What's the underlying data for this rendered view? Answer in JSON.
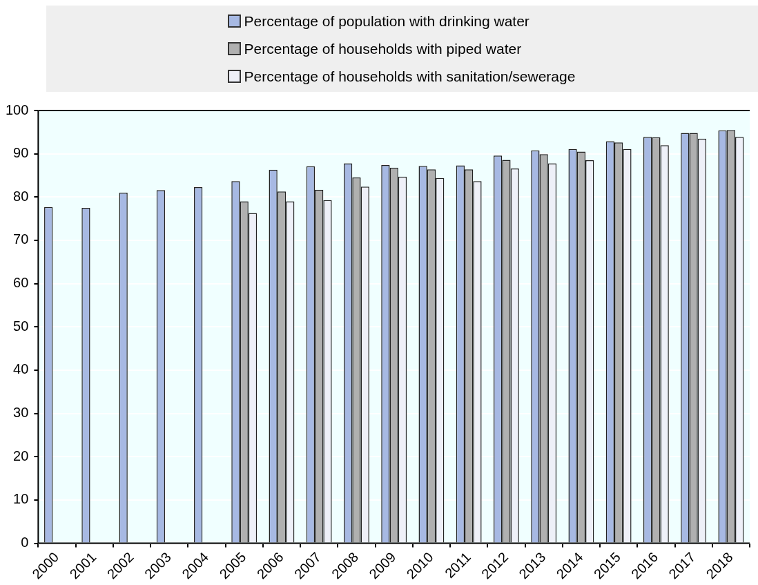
{
  "chart_data": {
    "type": "bar",
    "categories": [
      "2000",
      "2001",
      "2002",
      "2003",
      "2004",
      "2005",
      "2006",
      "2007",
      "2008",
      "2009",
      "2010",
      "2011",
      "2012",
      "2013",
      "2014",
      "2015",
      "2016",
      "2017",
      "2018"
    ],
    "series": [
      {
        "name": "Percentage of population with drinking water",
        "color": "#a7b9e3",
        "values": [
          77.7,
          77.5,
          81,
          81.6,
          82.3,
          83.7,
          86.3,
          87.1,
          87.8,
          87.4,
          87.2,
          87.3,
          89.6,
          90.8,
          91.1,
          92.9,
          93.9,
          94.8,
          95.4
        ]
      },
      {
        "name": "Percentage of households with piped water",
        "color": "#b0b0b0",
        "values": [
          null,
          null,
          null,
          null,
          null,
          79,
          81.3,
          81.7,
          84.5,
          86.8,
          86.4,
          86.4,
          88.6,
          89.9,
          90.5,
          92.6,
          93.8,
          94.8,
          95.5
        ]
      },
      {
        "name": "Percentage of households with sanitation/sewerage",
        "color": "#eef0f8",
        "values": [
          null,
          null,
          null,
          null,
          null,
          76.3,
          79,
          79.3,
          82.4,
          84.7,
          84.4,
          83.7,
          86.6,
          87.8,
          88.5,
          91.1,
          92,
          93.5,
          93.9
        ]
      }
    ],
    "ylim": [
      0,
      100
    ],
    "yticks": [
      0,
      10,
      20,
      30,
      40,
      50,
      60,
      70,
      80,
      90,
      100
    ],
    "grid": "y",
    "legend": "top"
  }
}
